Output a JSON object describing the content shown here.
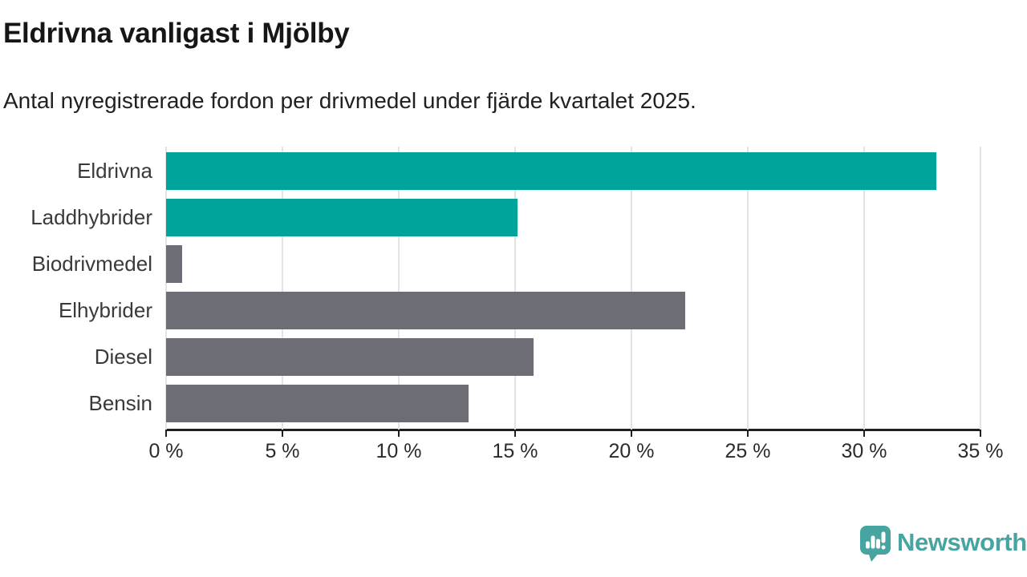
{
  "header": {
    "title": "Eldrivna vanligast i Mjölby",
    "subtitle": "Antal nyregistrerade fordon per drivmedel under fjärde kvartalet 2025."
  },
  "chart_data": {
    "type": "bar",
    "orientation": "horizontal",
    "title": "Eldrivna vanligast i Mjölby",
    "subtitle": "Antal nyregistrerade fordon per drivmedel under fjärde kvartalet 2025.",
    "categories": [
      "Eldrivna",
      "Laddhybrider",
      "Biodrivmedel",
      "Elhybrider",
      "Diesel",
      "Bensin"
    ],
    "values": [
      33.1,
      15.1,
      0.7,
      22.3,
      15.8,
      13.0
    ],
    "unit": "%",
    "xlabel": "",
    "ylabel": "",
    "xlim": [
      0,
      35
    ],
    "x_ticks": [
      0,
      5,
      10,
      15,
      20,
      25,
      30,
      35
    ],
    "x_tick_labels": [
      "0 %",
      "5 %",
      "10 %",
      "15 %",
      "20 %",
      "25 %",
      "30 %",
      "35 %"
    ],
    "grid": true,
    "legend": false,
    "bar_colors": [
      "#00a49b",
      "#00a49b",
      "#6d6d75",
      "#6d6d75",
      "#6d6d75",
      "#6d6d75"
    ],
    "highlight_color": "#00a49b",
    "default_color": "#6d6d75",
    "gridline_color": "#e4e4e4",
    "axis_color": "#1f1f1f"
  },
  "footer": {
    "brand": "Newsworthy",
    "brand_color": "#46a5a0",
    "logo_icon": "newsworthy-chart-speech-bubble-icon"
  }
}
